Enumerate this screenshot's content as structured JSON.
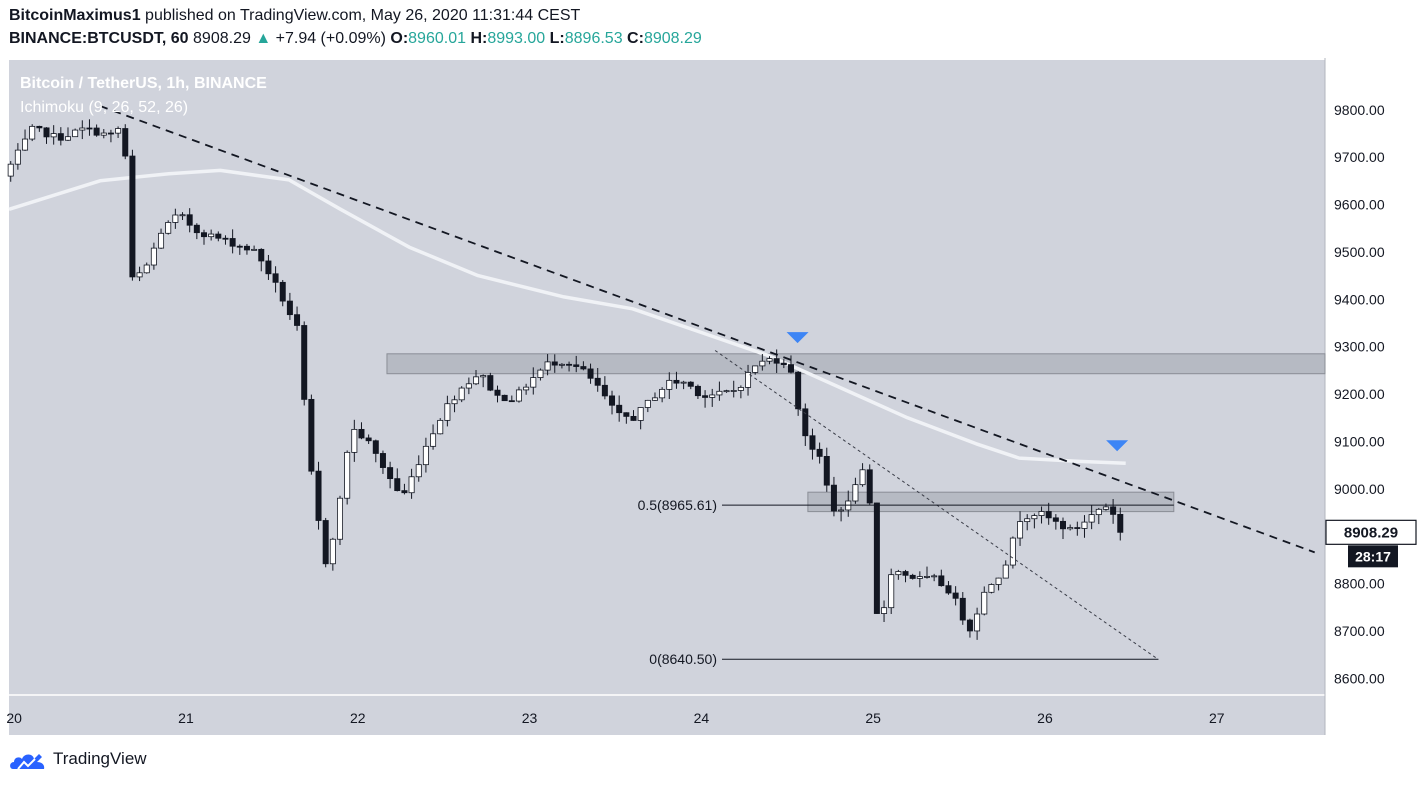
{
  "header": {
    "author": "BitcoinMaximus1",
    "published": " published on TradingView.com, May 26, 2020 11:31:44 CEST",
    "symbol": "BINANCE:BTCUSDT, 60",
    "last": "8908.29",
    "change_arrow": "▲",
    "change": "+7.94 (+0.09%)",
    "o_label": "O:",
    "o_value": "8960.01",
    "h_label": "H:",
    "h_value": "8993.00",
    "l_label": "L:",
    "l_value": "8896.53",
    "c_label": "C:",
    "c_value": "8908.29"
  },
  "chart_data": {
    "type": "candlestick",
    "title": "Bitcoin / TetherUS, 1h, BINANCE",
    "indicator": "Ichimoku (9, 26, 52, 26)",
    "x_tick_labels": [
      "20",
      "21",
      "22",
      "23",
      "24",
      "25",
      "26",
      "27"
    ],
    "y_tick_labels": [
      "9800.00",
      "9700.00",
      "9600.00",
      "9500.00",
      "9400.00",
      "9300.00",
      "9200.00",
      "9100.00",
      "9000.00",
      "8900.00",
      "8800.00",
      "8700.00",
      "8600.00"
    ],
    "ylim": [
      8565,
      9905
    ],
    "xlim": [
      19.97,
      27.63
    ],
    "last_price_label": "8908.29",
    "countdown_label": "28:17",
    "ohlc_keypoints": [
      [
        19.98,
        9660
      ],
      [
        20.05,
        9700
      ],
      [
        20.15,
        9760
      ],
      [
        20.3,
        9740
      ],
      [
        20.45,
        9760
      ],
      [
        20.6,
        9745
      ],
      [
        20.68,
        9770
      ],
      [
        20.72,
        9440
      ],
      [
        20.8,
        9460
      ],
      [
        20.9,
        9545
      ],
      [
        21.0,
        9580
      ],
      [
        21.1,
        9545
      ],
      [
        21.3,
        9520
      ],
      [
        21.45,
        9500
      ],
      [
        21.55,
        9440
      ],
      [
        21.7,
        9330
      ],
      [
        21.75,
        9085
      ],
      [
        21.85,
        8840
      ],
      [
        21.92,
        8930
      ],
      [
        22.0,
        9130
      ],
      [
        22.1,
        9100
      ],
      [
        22.2,
        9040
      ],
      [
        22.3,
        8980
      ],
      [
        22.45,
        9100
      ],
      [
        22.55,
        9170
      ],
      [
        22.65,
        9215
      ],
      [
        22.75,
        9245
      ],
      [
        22.85,
        9195
      ],
      [
        22.95,
        9190
      ],
      [
        23.05,
        9230
      ],
      [
        23.15,
        9265
      ],
      [
        23.25,
        9270
      ],
      [
        23.35,
        9250
      ],
      [
        23.45,
        9210
      ],
      [
        23.55,
        9155
      ],
      [
        23.65,
        9150
      ],
      [
        23.75,
        9190
      ],
      [
        23.85,
        9225
      ],
      [
        23.95,
        9225
      ],
      [
        24.05,
        9195
      ],
      [
        24.15,
        9200
      ],
      [
        24.25,
        9210
      ],
      [
        24.35,
        9260
      ],
      [
        24.45,
        9275
      ],
      [
        24.55,
        9265
      ],
      [
        24.6,
        9180
      ],
      [
        24.65,
        9110
      ],
      [
        24.75,
        9050
      ],
      [
        24.8,
        8950
      ],
      [
        24.9,
        8970
      ],
      [
        24.97,
        9050
      ],
      [
        25.03,
        8950
      ],
      [
        25.07,
        8690
      ],
      [
        25.15,
        8830
      ],
      [
        25.3,
        8810
      ],
      [
        25.4,
        8810
      ],
      [
        25.5,
        8780
      ],
      [
        25.55,
        8740
      ],
      [
        25.6,
        8700
      ],
      [
        25.7,
        8790
      ],
      [
        25.8,
        8830
      ],
      [
        25.9,
        8940
      ],
      [
        26.0,
        8950
      ],
      [
        26.1,
        8930
      ],
      [
        26.2,
        8910
      ],
      [
        26.3,
        8940
      ],
      [
        26.38,
        8965
      ],
      [
        26.43,
        8960
      ],
      [
        26.47,
        8908
      ]
    ],
    "moving_average": [
      [
        19.97,
        9590
      ],
      [
        20.5,
        9650
      ],
      [
        20.9,
        9665
      ],
      [
        21.2,
        9672
      ],
      [
        21.6,
        9652
      ],
      [
        21.9,
        9590
      ],
      [
        22.3,
        9510
      ],
      [
        22.7,
        9450
      ],
      [
        23.2,
        9405
      ],
      [
        23.6,
        9380
      ],
      [
        24.0,
        9330
      ],
      [
        24.4,
        9280
      ],
      [
        24.8,
        9215
      ],
      [
        25.2,
        9150
      ],
      [
        25.6,
        9095
      ],
      [
        25.85,
        9065
      ],
      [
        26.2,
        9058
      ],
      [
        26.47,
        9054
      ]
    ],
    "trendline": [
      [
        20.5,
        9808
      ],
      [
        27.57,
        8866
      ]
    ],
    "dotted_line": [
      [
        24.08,
        9292
      ],
      [
        26.66,
        8640
      ]
    ],
    "resistance_zone": {
      "x": [
        22.17,
        27.63
      ],
      "y": [
        9243,
        9285
      ]
    },
    "support_zone": {
      "x": [
        24.62,
        26.75
      ],
      "y": [
        8952,
        8993
      ]
    },
    "fib_levels": [
      {
        "label": "0.5(8965.61)",
        "value": 8965.61,
        "x": [
          25.0,
          26.75
        ]
      },
      {
        "label": "0(8640.50)",
        "value": 8640.5,
        "x": [
          25.0,
          26.66
        ]
      }
    ],
    "markers": [
      {
        "x": 24.56,
        "value": 9318
      },
      {
        "x": 26.42,
        "value": 9090
      }
    ],
    "grid": false
  },
  "colors": {
    "background": "#d0d3dc",
    "up": "#ffffff",
    "down": "#131722",
    "moving_average": "#f0f2f6",
    "marker": "#3d85f5",
    "zone_fill": "#b2b5be",
    "zone_stroke": "#8a8d96",
    "green": "#26a69a"
  },
  "brand": "TradingView"
}
